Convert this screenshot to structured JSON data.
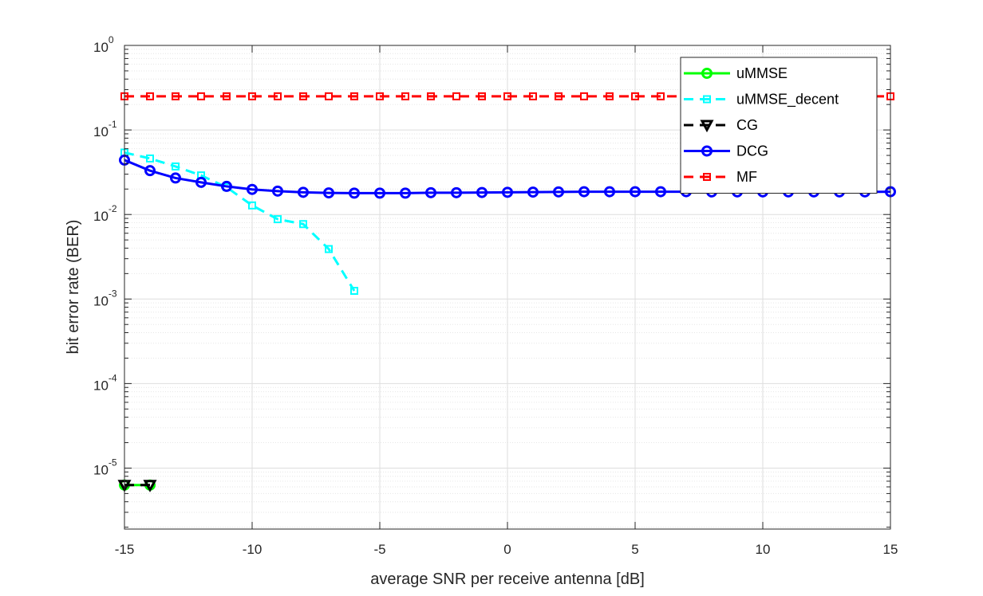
{
  "chart_data": {
    "type": "line",
    "title": "",
    "xlabel": "average SNR per receive antenna [dB]",
    "ylabel": "bit error rate (BER)",
    "xlim": [
      -15,
      15
    ],
    "ylim": [
      1.9e-06,
      1
    ],
    "yscale": "log",
    "grid": true,
    "minor_grid": true,
    "legend_position": "top-right",
    "xticks": [
      -15,
      -10,
      -5,
      0,
      5,
      10,
      15
    ],
    "xtick_labels": [
      "-15",
      "-10",
      "-5",
      "0",
      "5",
      "10",
      "15"
    ],
    "yticks": [
      {
        "value": 1,
        "base": "10",
        "exp": "0"
      },
      {
        "value": 0.1,
        "base": "10",
        "exp": "-1"
      },
      {
        "value": 0.01,
        "base": "10",
        "exp": "-2"
      },
      {
        "value": 0.001,
        "base": "10",
        "exp": "-3"
      },
      {
        "value": 0.0001,
        "base": "10",
        "exp": "-4"
      },
      {
        "value": 1e-05,
        "base": "10",
        "exp": "-5"
      }
    ],
    "series": [
      {
        "name": "uMMSE",
        "color": "#00ff00",
        "dash": "solid",
        "marker": "circle",
        "x": [
          -15,
          -14
        ],
        "y": [
          6.3e-06,
          6.3e-06
        ]
      },
      {
        "name": "uMMSE_decent",
        "color": "#00ffff",
        "dash": "dashed",
        "marker": "square",
        "x": [
          -15,
          -14,
          -13,
          -12,
          -11,
          -10,
          -9,
          -8,
          -7,
          -6
        ],
        "y": [
          0.054,
          0.046,
          0.037,
          0.029,
          0.021,
          0.0128,
          0.0088,
          0.0077,
          0.0039,
          0.00125
        ]
      },
      {
        "name": "CG",
        "color": "#000000",
        "dash": "dashed",
        "marker": "triangle-down",
        "x": [
          -15,
          -14
        ],
        "y": [
          6.3e-06,
          6.3e-06
        ]
      },
      {
        "name": "DCG",
        "color": "#0000ff",
        "dash": "solid",
        "marker": "circle",
        "x": [
          -15,
          -14,
          -13,
          -12,
          -11,
          -10,
          -9,
          -8,
          -7,
          -6,
          -5,
          -4,
          -3,
          -2,
          -1,
          0,
          1,
          2,
          3,
          4,
          5,
          6,
          7,
          8,
          9,
          10,
          11,
          12,
          13,
          14,
          15
        ],
        "y": [
          0.044,
          0.033,
          0.027,
          0.024,
          0.0215,
          0.0198,
          0.0189,
          0.0183,
          0.018,
          0.0179,
          0.0179,
          0.0179,
          0.0181,
          0.0181,
          0.0182,
          0.0183,
          0.0184,
          0.0185,
          0.0186,
          0.0186,
          0.0186,
          0.0186,
          0.0186,
          0.0185,
          0.0185,
          0.0185,
          0.0185,
          0.0185,
          0.0185,
          0.0185,
          0.0186
        ]
      },
      {
        "name": "MF",
        "color": "#ff0000",
        "dash": "dashed",
        "marker": "square",
        "x": [
          -15,
          -14,
          -13,
          -12,
          -11,
          -10,
          -9,
          -8,
          -7,
          -6,
          -5,
          -4,
          -3,
          -2,
          -1,
          0,
          1,
          2,
          3,
          4,
          5,
          6,
          7,
          8,
          9,
          10,
          11,
          12,
          13,
          14,
          15
        ],
        "y": [
          0.25,
          0.25,
          0.25,
          0.25,
          0.25,
          0.25,
          0.25,
          0.25,
          0.25,
          0.25,
          0.25,
          0.25,
          0.25,
          0.25,
          0.25,
          0.25,
          0.25,
          0.25,
          0.25,
          0.25,
          0.25,
          0.25,
          0.25,
          0.25,
          0.25,
          0.25,
          0.25,
          0.25,
          0.25,
          0.25,
          0.25
        ]
      }
    ]
  }
}
